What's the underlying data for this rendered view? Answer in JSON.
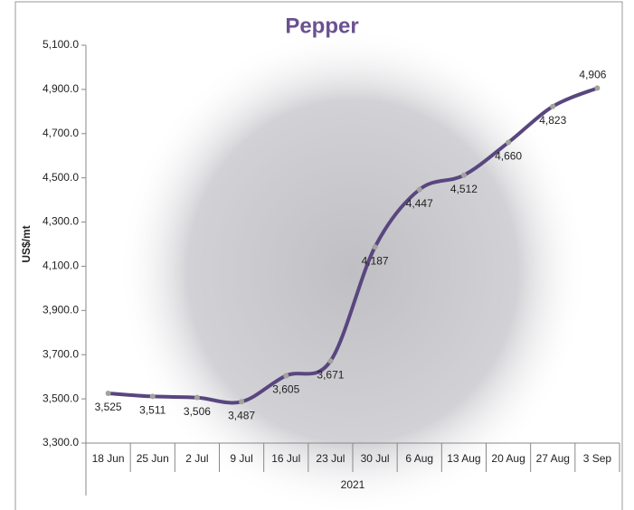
{
  "chart_data": {
    "type": "line",
    "title": "Pepper",
    "y_label": "US$/mt",
    "x_group_label": "2021",
    "categories": [
      "18 Jun",
      "25 Jun",
      "2 Jul",
      "9 Jul",
      "16 Jul",
      "23 Jul",
      "30 Jul",
      "6 Aug",
      "13 Aug",
      "20 Aug",
      "27 Aug",
      "3 Sep"
    ],
    "values": [
      3525,
      3511,
      3506,
      3487,
      3605,
      3671,
      4187,
      4447,
      4512,
      4660,
      4823,
      4906
    ],
    "value_labels": [
      "3,525",
      "3,511",
      "3,506",
      "3,487",
      "3,605",
      "3,671",
      "4,187",
      "4,447",
      "4,512",
      "4,660",
      "4,823",
      "4,906"
    ],
    "color": "#59467f",
    "marker_color": "#a3a39b",
    "ylim": [
      3300,
      5100
    ],
    "yticks": [
      {
        "value": 3300,
        "label": "3,300.0"
      },
      {
        "value": 3500,
        "label": "3,500.0"
      },
      {
        "value": 3700,
        "label": "3,700.0"
      },
      {
        "value": 3900,
        "label": "3,900.0"
      },
      {
        "value": 4100,
        "label": "4,100.0"
      },
      {
        "value": 4300,
        "label": "4,300.0"
      },
      {
        "value": 4500,
        "label": "4,500.0"
      },
      {
        "value": 4700,
        "label": "4,700.0"
      },
      {
        "value": 4900,
        "label": "4,900.0"
      },
      {
        "value": 5100,
        "label": "5,100.0"
      }
    ],
    "grid": false
  }
}
